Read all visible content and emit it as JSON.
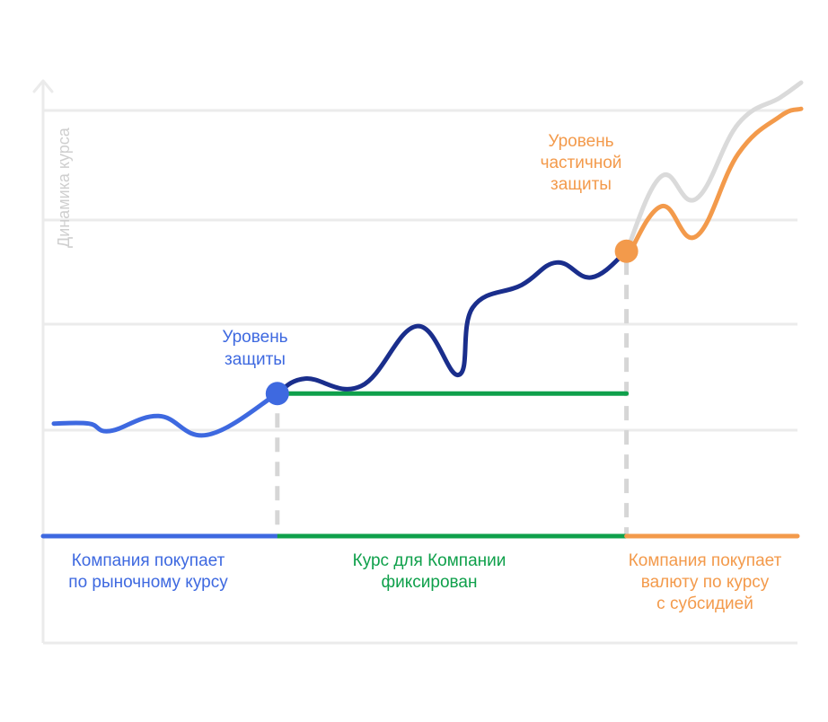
{
  "chart_data": {
    "type": "line",
    "ylabel": "Динамика курса",
    "grid": true,
    "colors": {
      "market": "#3e69e0",
      "protected": "#1a2e8c",
      "fixed": "#0fa04b",
      "subsidy": "#f39a4b",
      "market_reference": "#dadada",
      "axis": "#ebebeb"
    },
    "series": [
      {
        "key": "market_rate",
        "points": [
          [
            0,
            0.2
          ],
          [
            5,
            0.2
          ],
          [
            8,
            0.0
          ],
          [
            15,
            0.4
          ],
          [
            22,
            -0.1
          ],
          [
            32,
            1.0
          ]
        ]
      },
      {
        "key": "protected_rate",
        "points": [
          [
            32,
            1.0
          ],
          [
            36,
            1.4
          ],
          [
            44,
            1.2
          ],
          [
            52,
            2.8
          ],
          [
            58,
            1.5
          ],
          [
            60,
            3.3
          ],
          [
            67,
            3.9
          ],
          [
            72,
            4.5
          ],
          [
            77,
            4.1
          ],
          [
            82,
            4.8
          ]
        ]
      },
      {
        "key": "fixed_rate",
        "points": [
          [
            32,
            1.0
          ],
          [
            82,
            1.0
          ]
        ]
      },
      {
        "key": "subsidy_rate",
        "points": [
          [
            82,
            4.6
          ],
          [
            87,
            6.0
          ],
          [
            92,
            5.2
          ],
          [
            98,
            7.4
          ],
          [
            104,
            8.4
          ],
          [
            107,
            8.6
          ]
        ]
      },
      {
        "key": "market_reference_rate",
        "points": [
          [
            82,
            4.8
          ],
          [
            87,
            6.8
          ],
          [
            92,
            6.2
          ],
          [
            98,
            8.2
          ],
          [
            104,
            8.9
          ],
          [
            107,
            9.3
          ]
        ]
      }
    ],
    "markers": [
      {
        "key": "protection_level",
        "x": 32,
        "y": 1.0
      },
      {
        "key": "partial_protection_level",
        "x": 82,
        "y": 4.8
      }
    ],
    "phase_boundaries": [
      32,
      82
    ],
    "annotations": {
      "protection_level": [
        "Уровень",
        "защиты"
      ],
      "partial_protection_level": [
        "Уровень",
        "частичной",
        "защиты"
      ]
    },
    "phases": [
      {
        "key": "market",
        "lines": [
          "Компания покупает",
          "по рыночному курсу"
        ]
      },
      {
        "key": "fixed",
        "lines": [
          "Курс для Компании",
          "фиксирован"
        ]
      },
      {
        "key": "subsidy",
        "lines": [
          "Компания покупает",
          "валюту по курсу",
          "с субсидией"
        ]
      }
    ]
  }
}
